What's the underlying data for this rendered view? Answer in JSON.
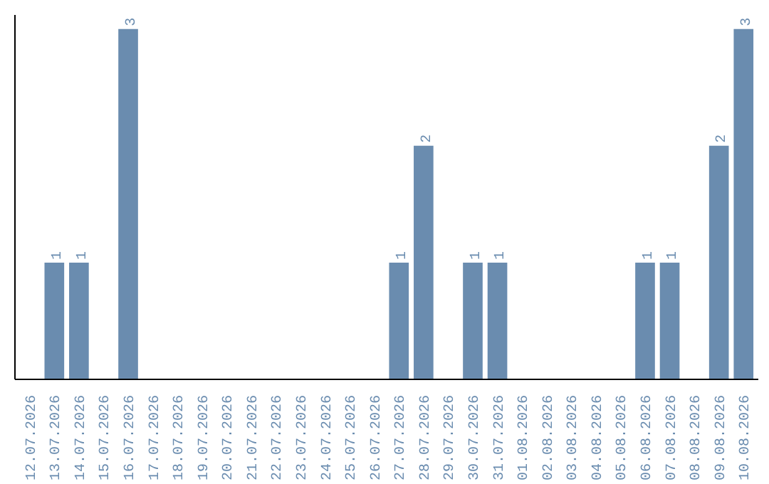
{
  "chart_data": {
    "type": "bar",
    "categories": [
      "12.07.2026",
      "13.07.2026",
      "14.07.2026",
      "15.07.2026",
      "16.07.2026",
      "17.07.2026",
      "18.07.2026",
      "19.07.2026",
      "20.07.2026",
      "21.07.2026",
      "22.07.2026",
      "23.07.2026",
      "24.07.2026",
      "25.07.2026",
      "26.07.2026",
      "27.07.2026",
      "28.07.2026",
      "29.07.2026",
      "30.07.2026",
      "31.07.2026",
      "01.08.2026",
      "02.08.2026",
      "03.08.2026",
      "04.08.2026",
      "05.08.2026",
      "06.08.2026",
      "07.08.2026",
      "08.08.2026",
      "09.08.2026",
      "10.08.2026"
    ],
    "values": [
      0,
      1,
      1,
      0,
      3,
      0,
      0,
      0,
      0,
      0,
      0,
      0,
      0,
      0,
      0,
      1,
      2,
      0,
      1,
      1,
      0,
      0,
      0,
      0,
      0,
      1,
      1,
      0,
      2,
      3
    ],
    "value_labels": [
      null,
      "1",
      "1",
      null,
      "3",
      null,
      null,
      null,
      null,
      null,
      null,
      null,
      null,
      null,
      null,
      "1",
      "2",
      null,
      "1",
      "1",
      null,
      null,
      null,
      null,
      null,
      "1",
      "1",
      null,
      "2",
      "3"
    ],
    "color": "#6a8caf",
    "tick_labels": "x"
  }
}
